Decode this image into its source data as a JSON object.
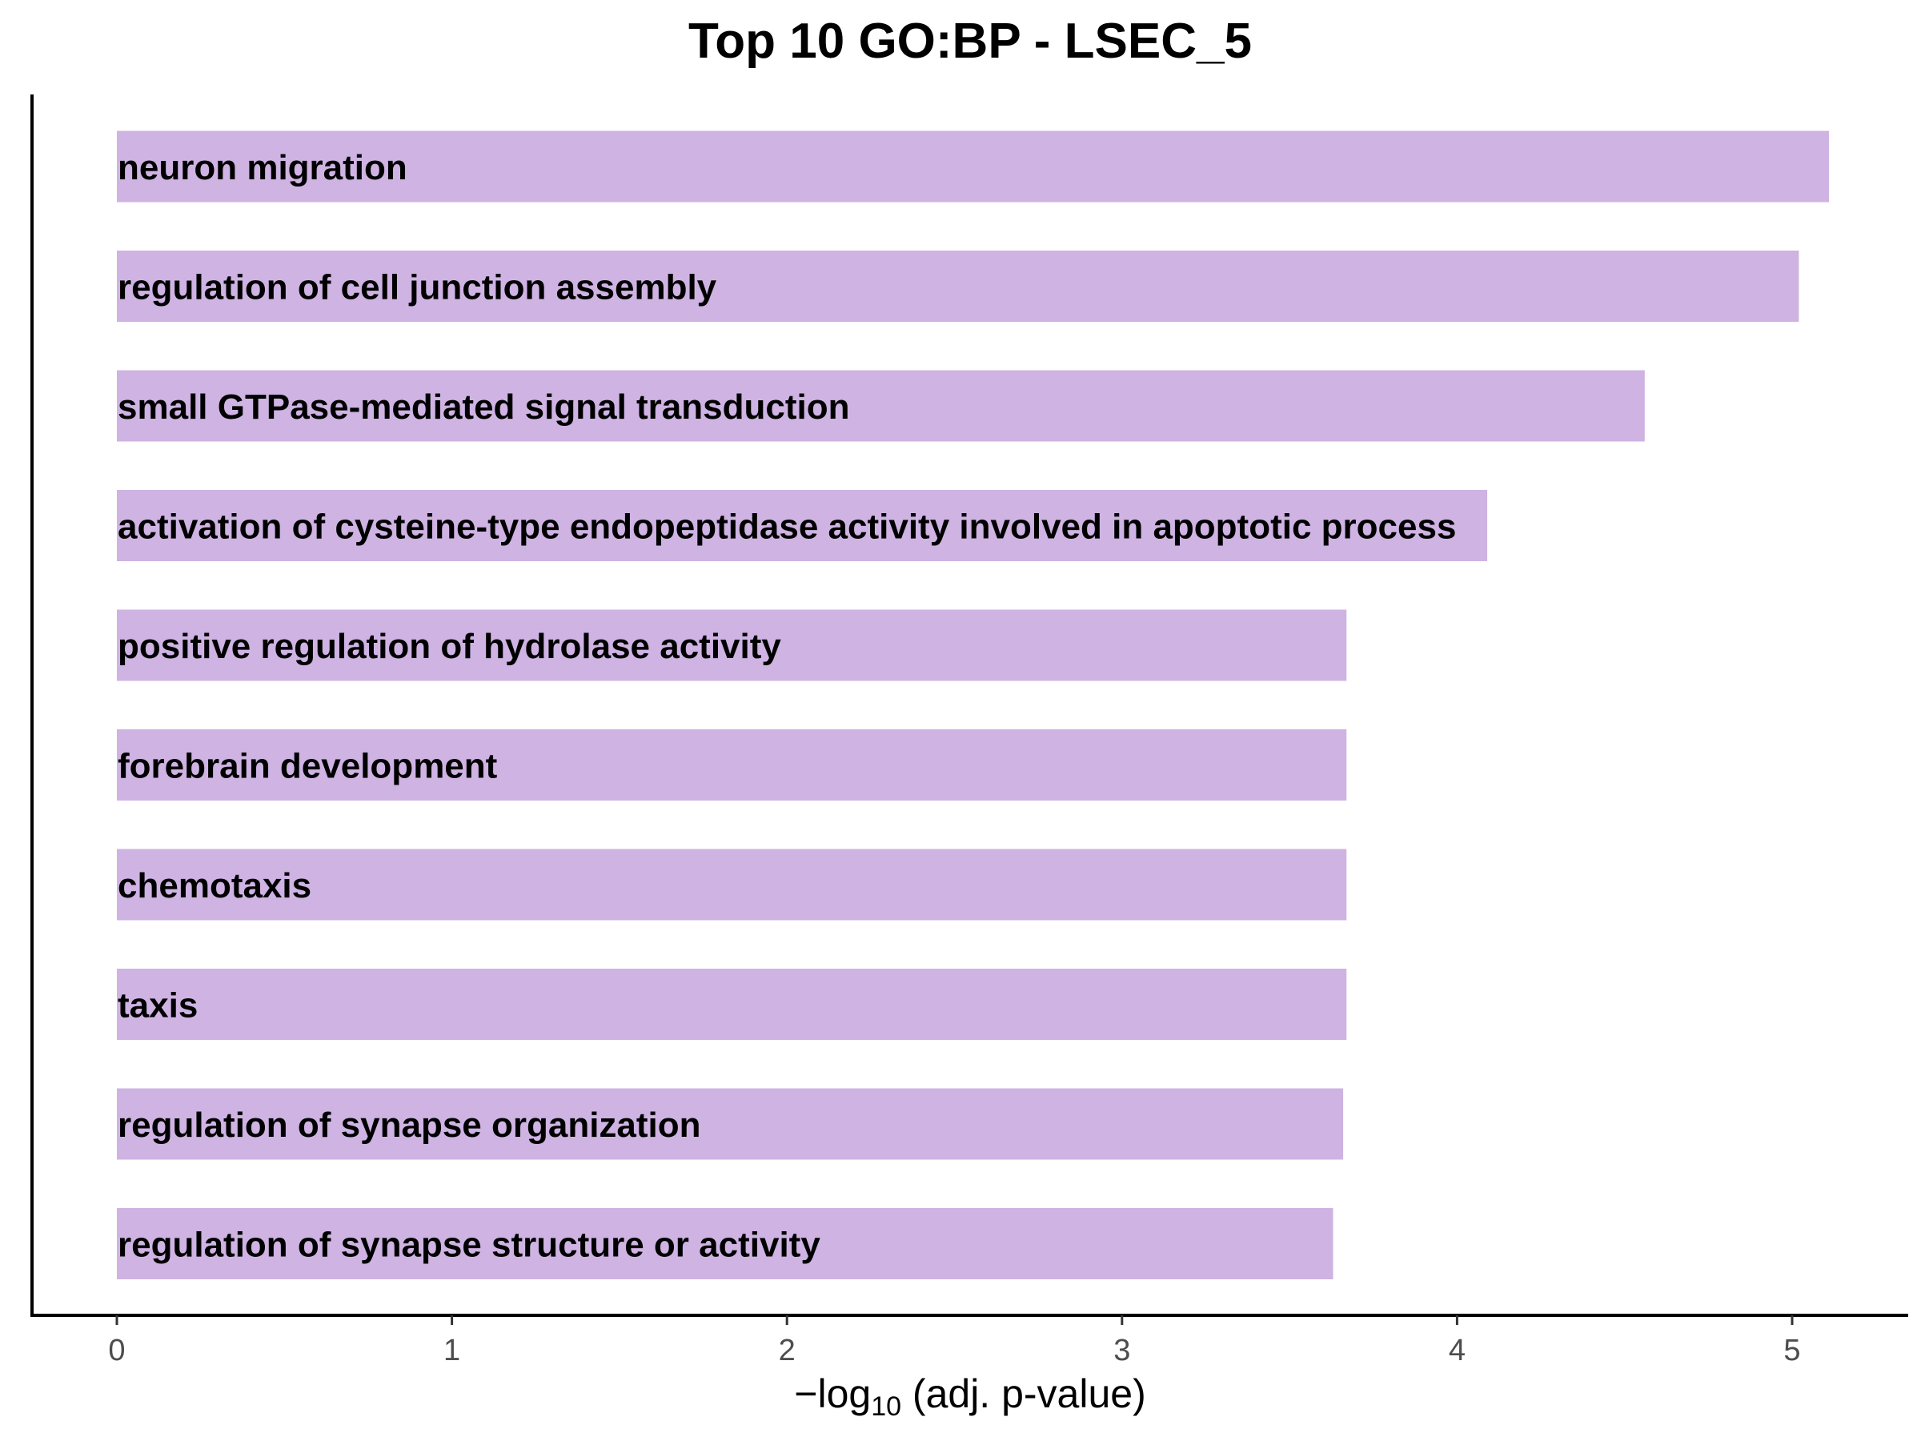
{
  "chart_data": {
    "type": "bar",
    "orientation": "horizontal",
    "title": "Top 10 GO:BP - LSEC_5",
    "xlabel": {
      "prefix": "−log",
      "subscript": "10",
      "suffix": " (adj. p-value)"
    },
    "ylabel": "",
    "xlim": [
      -0.25,
      5.55
    ],
    "xticks": [
      0,
      1,
      2,
      3,
      4,
      5
    ],
    "xtick_labels": [
      "0",
      "1",
      "2",
      "3",
      "4",
      "5"
    ],
    "grid": false,
    "legend": "none",
    "bar_color": "#ceb3e3",
    "categories": [
      "neuron migration",
      "regulation of cell junction assembly",
      "small GTPase-mediated signal transduction",
      "activation of cysteine-type endopeptidase activity involved in apoptotic process",
      "positive regulation of hydrolase activity",
      "forebrain development",
      "chemotaxis",
      "taxis",
      "regulation of synapse organization",
      "regulation of synapse structure or activity"
    ],
    "values": [
      5.11,
      5.02,
      4.56,
      4.09,
      3.67,
      3.67,
      3.67,
      3.67,
      3.66,
      3.63
    ]
  }
}
